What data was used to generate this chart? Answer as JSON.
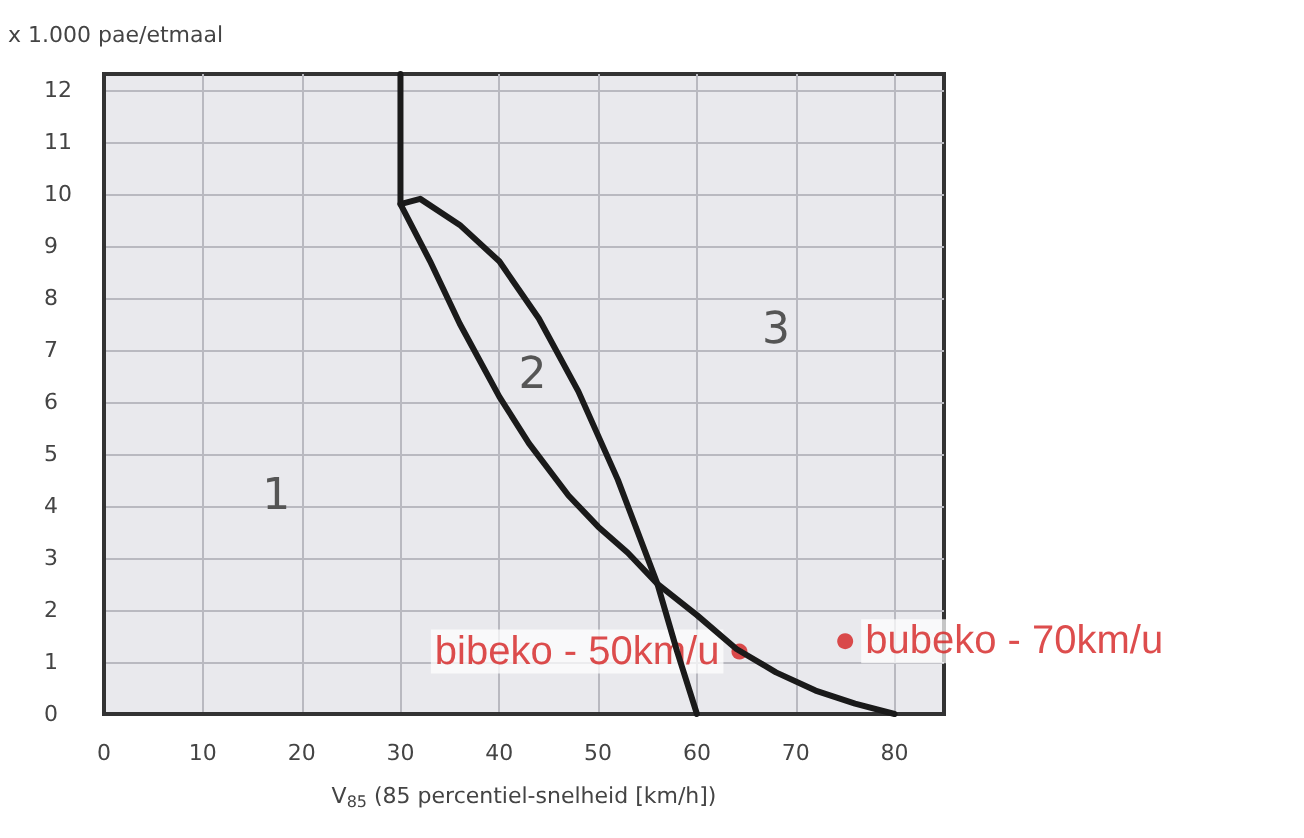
{
  "chart_data": {
    "type": "line",
    "xlabel": "V$_{85}$ (85 percentiel-snelheid [km/h])",
    "ylabel": "x 1.000 pae/etmaal",
    "xlim": [
      0,
      85
    ],
    "xticks": [
      0,
      10,
      20,
      30,
      40,
      50,
      60,
      70,
      80
    ],
    "ylim": [
      0,
      12.3
    ],
    "yticks": [
      0,
      1,
      2,
      3,
      4,
      5,
      6,
      7,
      8,
      9,
      10,
      11,
      12
    ],
    "grid": true,
    "legend": false,
    "marker": "none",
    "line_style": "solid",
    "series": [
      {
        "color": "#1a1a1a",
        "x": [
          30,
          30,
          32,
          36,
          40,
          44,
          48,
          52,
          56,
          58,
          60
        ],
        "values": [
          12.3,
          9.8,
          9.9,
          9.4,
          8.7,
          7.6,
          6.2,
          4.5,
          2.5,
          1.2,
          0
        ]
      },
      {
        "color": "#1a1a1a",
        "x": [
          30,
          33,
          36,
          40,
          43,
          47,
          50,
          53,
          56,
          60,
          64,
          68,
          72,
          76,
          80
        ],
        "values": [
          9.8,
          8.7,
          7.5,
          6.1,
          5.2,
          4.2,
          3.6,
          3.1,
          2.5,
          1.9,
          1.25,
          0.8,
          0.45,
          0.2,
          0
        ]
      },
      {
        "type": "scatter",
        "name": "bibeko - 50km/u",
        "color": "#d42020",
        "x": [
          64.3
        ],
        "values": [
          1.2
        ],
        "marker": "circle"
      },
      {
        "type": "scatter",
        "name": "bubeko - 70km/u",
        "color": "#d42020",
        "x": [
          75
        ],
        "values": [
          1.4
        ],
        "marker": "circle"
      }
    ],
    "annotations": [
      "1",
      "2",
      "3"
    ]
  }
}
